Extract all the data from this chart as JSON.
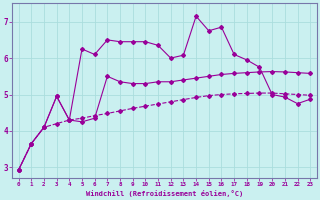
{
  "title": "",
  "xlabel": "Windchill (Refroidissement éolien,°C)",
  "ylabel": "",
  "bg_color": "#caf0f0",
  "line_color": "#990099",
  "grid_color": "#aadddd",
  "spine_color": "#7777aa",
  "xlim": [
    -0.5,
    23.5
  ],
  "ylim": [
    2.7,
    7.5
  ],
  "xticks": [
    0,
    1,
    2,
    3,
    4,
    5,
    6,
    7,
    8,
    9,
    10,
    11,
    12,
    13,
    14,
    15,
    16,
    17,
    18,
    19,
    20,
    21,
    22,
    23
  ],
  "yticks": [
    3,
    4,
    5,
    6,
    7
  ],
  "series1_x": [
    0,
    1,
    2,
    3,
    4,
    5,
    6,
    7,
    8,
    9,
    10,
    11,
    12,
    13,
    14,
    15,
    16,
    17,
    18,
    19,
    20,
    21,
    22,
    23
  ],
  "series1_y": [
    2.93,
    3.65,
    4.1,
    4.95,
    4.3,
    4.25,
    4.35,
    5.5,
    5.35,
    5.3,
    5.3,
    5.35,
    5.35,
    5.4,
    5.45,
    5.5,
    5.55,
    5.58,
    5.6,
    5.62,
    5.63,
    5.62,
    5.6,
    5.58
  ],
  "series2_x": [
    0,
    1,
    2,
    3,
    4,
    5,
    6,
    7,
    8,
    9,
    10,
    11,
    12,
    13,
    14,
    15,
    16,
    17,
    18,
    19,
    20,
    21,
    22,
    23
  ],
  "series2_y": [
    2.93,
    3.65,
    4.1,
    4.2,
    4.3,
    4.35,
    4.42,
    4.48,
    4.55,
    4.62,
    4.68,
    4.74,
    4.8,
    4.86,
    4.92,
    4.97,
    5.0,
    5.02,
    5.03,
    5.04,
    5.04,
    5.02,
    5.0,
    4.98
  ],
  "series3_x": [
    0,
    1,
    2,
    3,
    4,
    5,
    6,
    7,
    8,
    9,
    10,
    11,
    12,
    13,
    14,
    15,
    16,
    17,
    18,
    19,
    20,
    21,
    22,
    23
  ],
  "series3_y": [
    2.93,
    3.65,
    4.1,
    4.95,
    4.3,
    6.25,
    6.1,
    6.5,
    6.45,
    6.45,
    6.45,
    6.35,
    6.0,
    6.08,
    7.15,
    6.75,
    6.85,
    6.1,
    5.95,
    5.75,
    5.0,
    4.93,
    4.75,
    4.87
  ],
  "xlabel_color": "#990099",
  "tick_color": "#990099",
  "markersize": 2.0,
  "linewidth": 0.8
}
